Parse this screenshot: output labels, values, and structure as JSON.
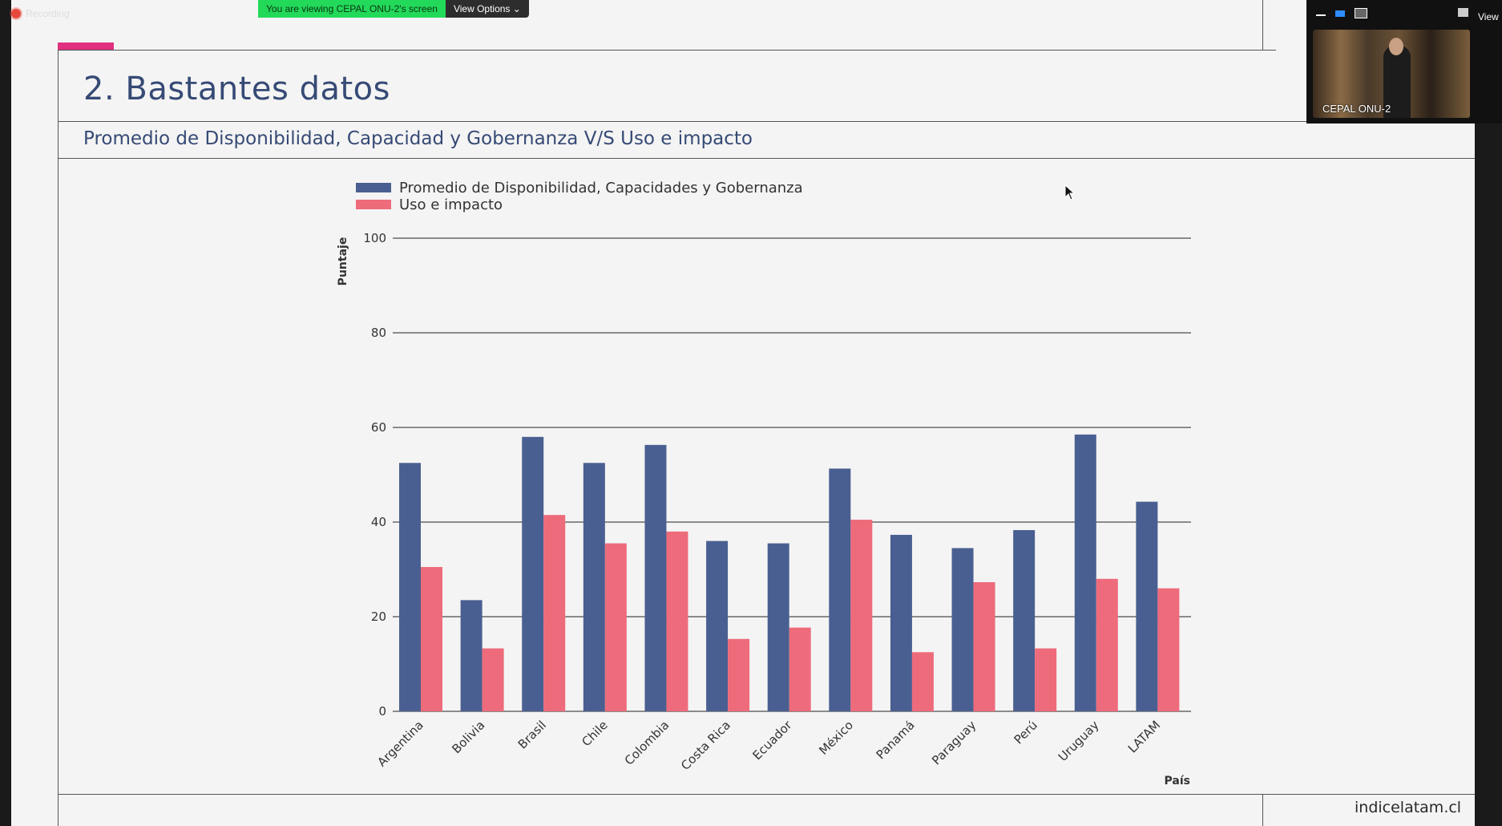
{
  "zoom": {
    "recording_label": "Recording",
    "viewing_message": "You are viewing CEPAL ONU-2's screen",
    "view_options_label": "View Options",
    "view_button_label": "View",
    "participant_name": "CEPAL ONU-2"
  },
  "slide": {
    "title": "2. Bastantes datos",
    "subtitle": "Promedio de Disponibilidad, Capacidad y Gobernanza V/S Uso e impacto",
    "footer": "indicelatam.cl"
  },
  "chart_data": {
    "type": "bar",
    "categories": [
      "Argentina",
      "Bolivia",
      "Brasil",
      "Chile",
      "Colombia",
      "Costa Rica",
      "Ecuador",
      "México",
      "Panamá",
      "Paraguay",
      "Perú",
      "Uruguay",
      "LATAM"
    ],
    "series": [
      {
        "name": "Promedio de Disponibilidad, Capacidades y Gobernanza",
        "color": "#4a5f91",
        "values": [
          52.5,
          23.5,
          58,
          52.5,
          56.3,
          36,
          35.5,
          51.3,
          37.3,
          34.5,
          38.3,
          58.5,
          44.3
        ]
      },
      {
        "name": "Uso e impacto",
        "color": "#ee6b7b",
        "values": [
          30.5,
          13.3,
          41.5,
          35.5,
          38,
          15.3,
          17.7,
          40.5,
          12.5,
          27.3,
          13.3,
          28,
          26
        ]
      }
    ],
    "xlabel": "País",
    "ylabel": "Puntaje",
    "ylim": [
      0,
      100
    ],
    "yticks": [
      0,
      20,
      40,
      60,
      80,
      100
    ],
    "grid": true,
    "legend": "top-left"
  }
}
